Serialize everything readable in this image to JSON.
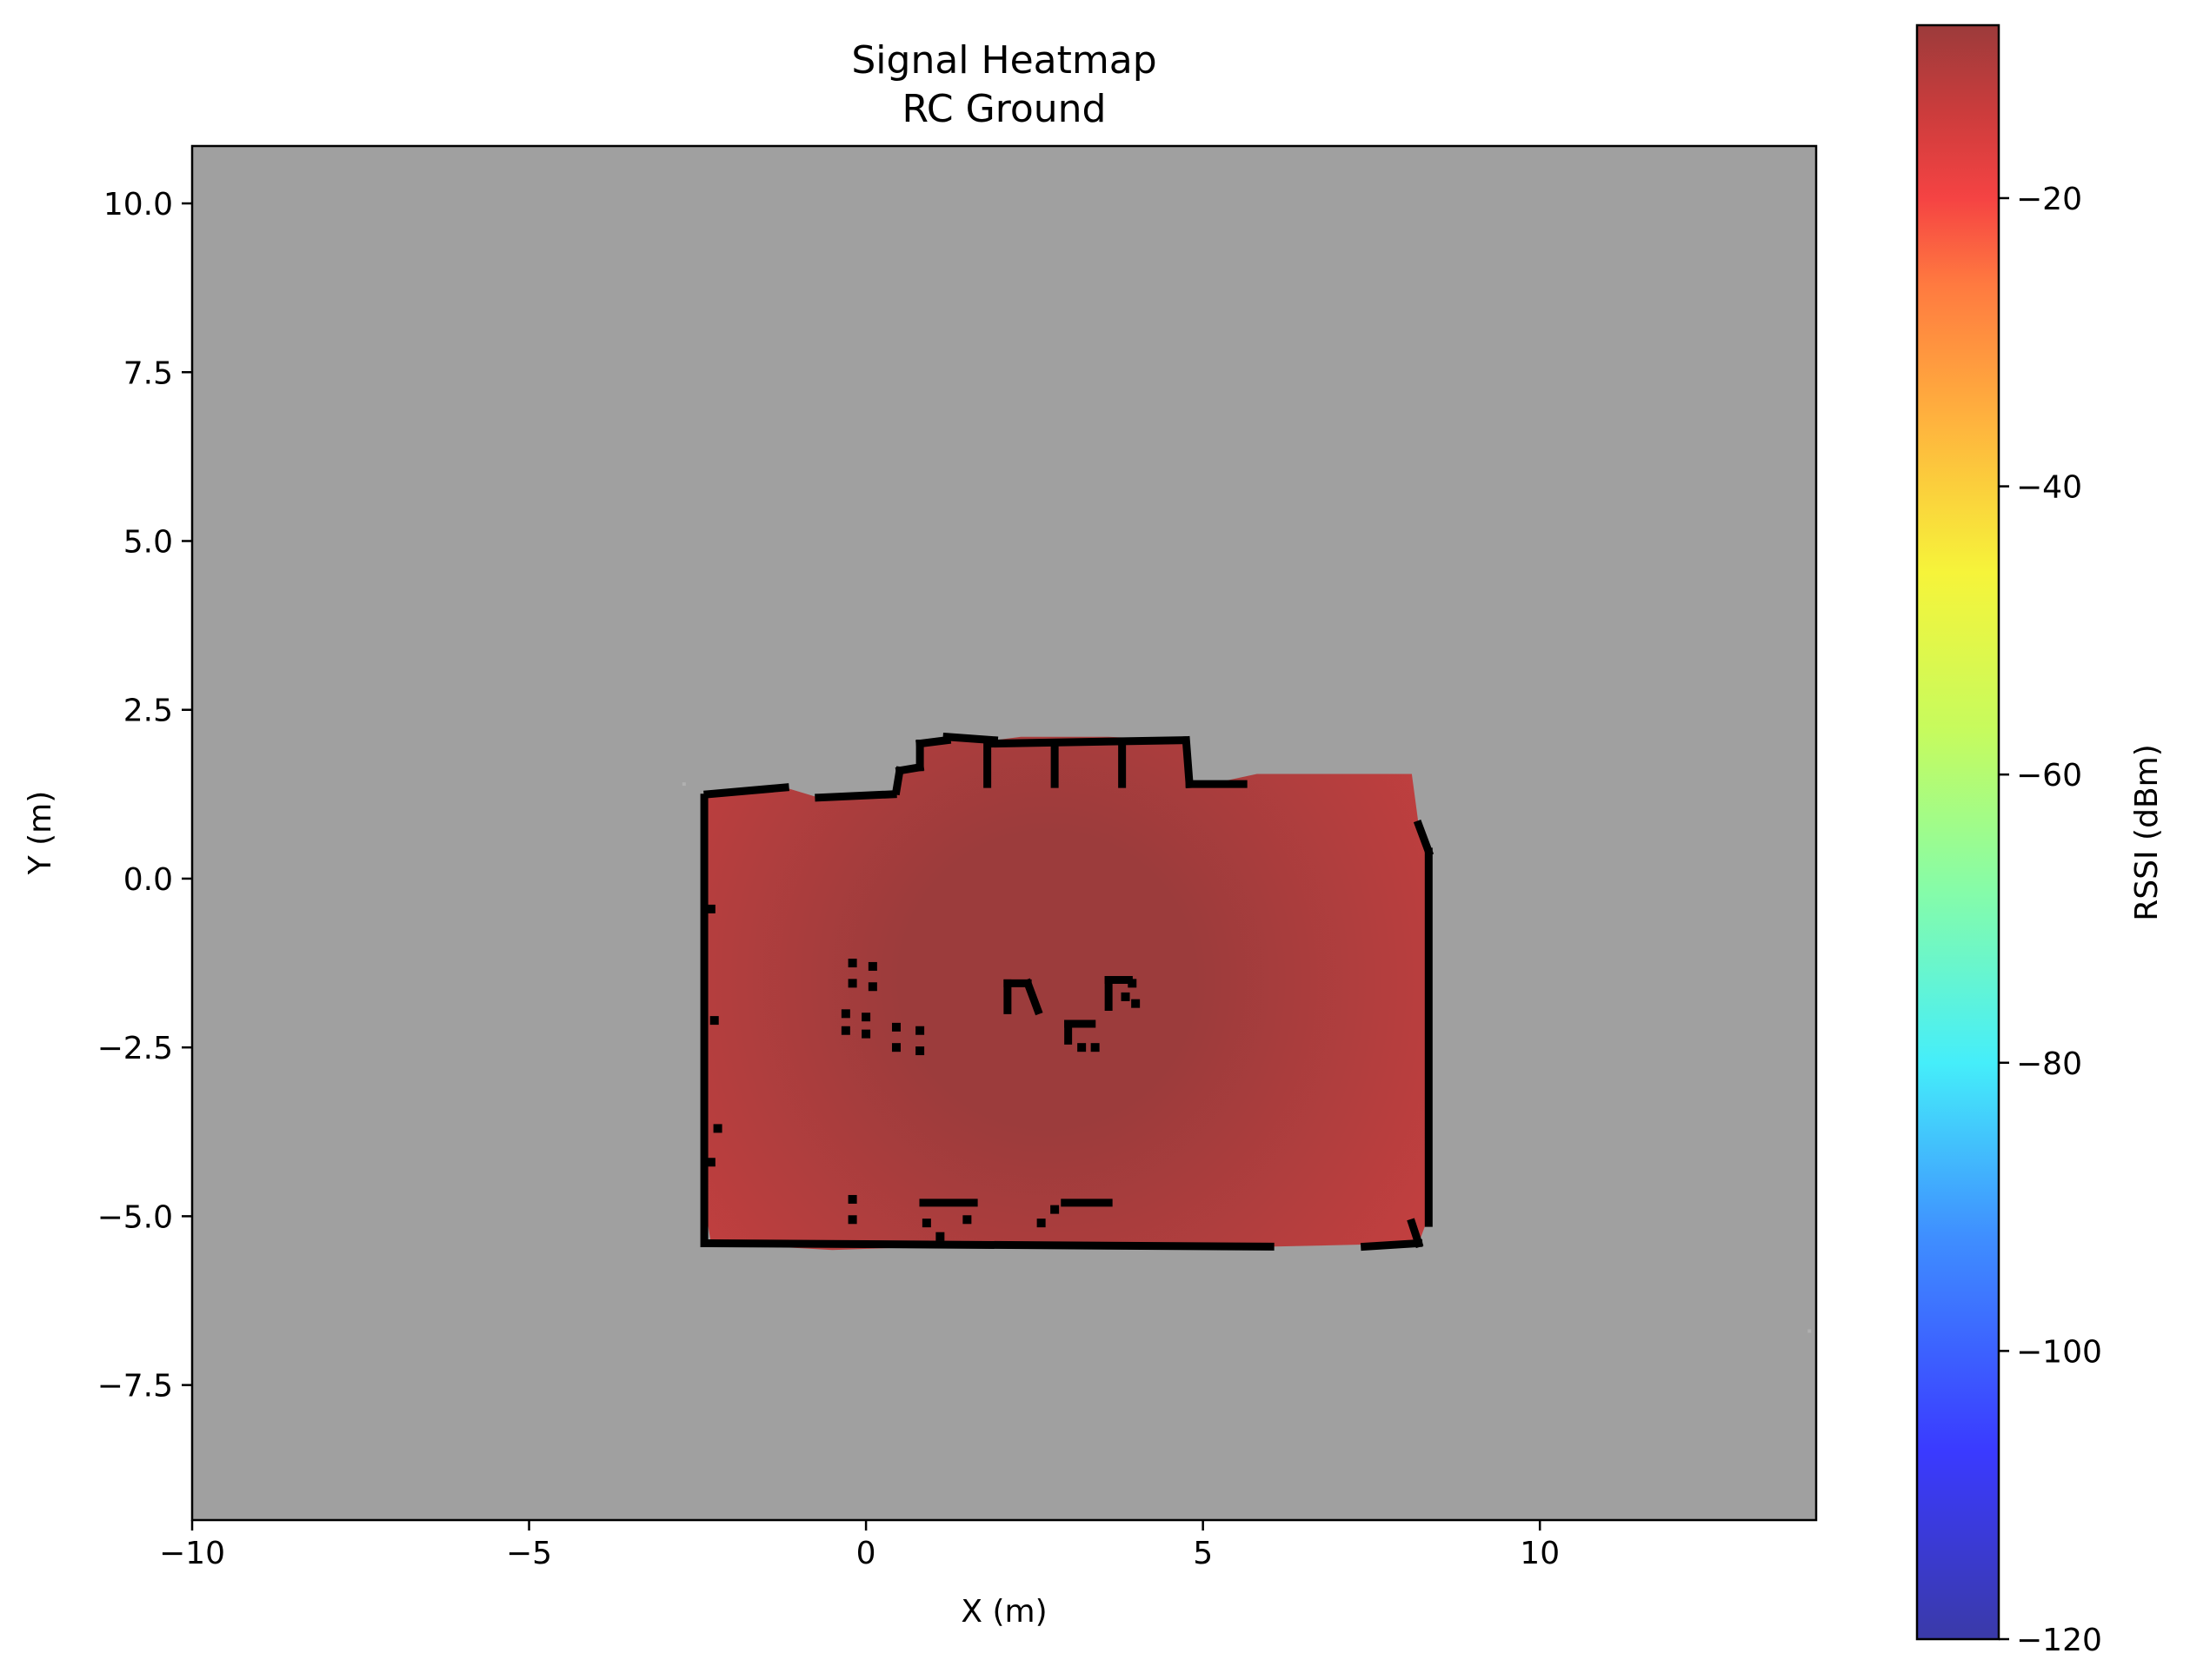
{
  "chart_data": {
    "type": "heatmap",
    "title": "Signal Heatmap",
    "subtitle": "RC Ground",
    "xlabel": "X (m)",
    "ylabel": "Y (m)",
    "xlim": [
      -10,
      14.1
    ],
    "ylim": [
      -9.5,
      10.85
    ],
    "xticks": [
      -10,
      -5,
      0,
      5,
      10
    ],
    "xtick_labels": [
      "−10",
      "−5",
      "0",
      "5",
      "10"
    ],
    "yticks": [
      10.0,
      7.5,
      5.0,
      2.5,
      0.0,
      -2.5,
      -5.0,
      -7.5
    ],
    "ytick_labels": [
      "10.0",
      "7.5",
      "5.0",
      "2.5",
      "0.0",
      "−2.5",
      "−5.0",
      "−7.5"
    ],
    "grid": false,
    "background_color": "#a0a0a0",
    "wall_color": "#000000",
    "colormap": "jet",
    "colorbar": {
      "label": "RSSI (dBm)",
      "range": [
        -120,
        -8
      ],
      "ticks": [
        -20,
        -40,
        -60,
        -80,
        -100,
        -120
      ],
      "tick_labels": [
        "−20",
        "−40",
        "−60",
        "−80",
        "−100",
        "−120"
      ],
      "stops": [
        {
          "value": -120,
          "color": "#3a3aa8"
        },
        {
          "value": -107,
          "color": "#3a3aff"
        },
        {
          "value": -92,
          "color": "#3f8fff"
        },
        {
          "value": -80,
          "color": "#45eefa"
        },
        {
          "value": -68,
          "color": "#86fca8"
        },
        {
          "value": -57,
          "color": "#c6fb5e"
        },
        {
          "value": -46,
          "color": "#f6f43a"
        },
        {
          "value": -35,
          "color": "#ffb03e"
        },
        {
          "value": -26,
          "color": "#ff7a40"
        },
        {
          "value": -20,
          "color": "#f54343"
        },
        {
          "value": -14,
          "color": "#cb3c3c"
        },
        {
          "value": -8,
          "color": "#9c3b3b"
        }
      ]
    },
    "coverage": {
      "rssi_center": -9,
      "rssi_edge": -19,
      "center_point": [
        2.7,
        -1.5
      ],
      "color_center": "#9c3c3c",
      "color_edge": "#e54242",
      "footprint": [
        [
          -2.4,
          1.2
        ],
        [
          -1.2,
          1.35
        ],
        [
          -0.7,
          1.2
        ],
        [
          0.4,
          1.3
        ],
        [
          0.5,
          1.6
        ],
        [
          0.8,
          1.65
        ],
        [
          0.8,
          2.0
        ],
        [
          1.2,
          2.1
        ],
        [
          1.9,
          2.05
        ],
        [
          2.3,
          2.1
        ],
        [
          3.6,
          2.1
        ],
        [
          4.7,
          2.05
        ],
        [
          4.8,
          1.4
        ],
        [
          5.1,
          1.4
        ],
        [
          5.8,
          1.55
        ],
        [
          8.1,
          1.55
        ],
        [
          8.2,
          0.8
        ],
        [
          8.35,
          0.5
        ],
        [
          8.35,
          -5.0
        ],
        [
          8.2,
          -5.4
        ],
        [
          6.0,
          -5.45
        ],
        [
          3.4,
          -5.4
        ],
        [
          1.0,
          -5.45
        ],
        [
          -0.5,
          -5.5
        ],
        [
          -2.3,
          -5.4
        ],
        [
          -2.4,
          -4.8
        ],
        [
          -2.4,
          -3.0
        ]
      ],
      "walls": [
        [
          [
            -2.4,
            1.2
          ],
          [
            -2.4,
            -5.4
          ]
        ],
        [
          [
            -2.35,
            1.25
          ],
          [
            -1.2,
            1.35
          ]
        ],
        [
          [
            -0.7,
            1.2
          ],
          [
            0.4,
            1.25
          ]
        ],
        [
          [
            0.45,
            1.3
          ],
          [
            0.5,
            1.6
          ]
        ],
        [
          [
            0.5,
            1.6
          ],
          [
            0.8,
            1.65
          ]
        ],
        [
          [
            0.8,
            1.65
          ],
          [
            0.8,
            2.0
          ]
        ],
        [
          [
            0.8,
            2.0
          ],
          [
            1.2,
            2.05
          ]
        ],
        [
          [
            1.2,
            2.1
          ],
          [
            1.9,
            2.05
          ]
        ],
        [
          [
            1.9,
            2.0
          ],
          [
            4.7,
            2.05
          ]
        ],
        [
          [
            1.8,
            2.0
          ],
          [
            1.8,
            1.4
          ]
        ],
        [
          [
            2.8,
            2.0
          ],
          [
            2.8,
            1.4
          ]
        ],
        [
          [
            3.8,
            2.0
          ],
          [
            3.8,
            1.4
          ]
        ],
        [
          [
            4.75,
            2.05
          ],
          [
            4.8,
            1.4
          ]
        ],
        [
          [
            4.8,
            1.4
          ],
          [
            5.6,
            1.4
          ]
        ],
        [
          [
            8.2,
            0.8
          ],
          [
            8.35,
            0.4
          ]
        ],
        [
          [
            8.35,
            0.4
          ],
          [
            8.35,
            -5.1
          ]
        ],
        [
          [
            8.1,
            -5.1
          ],
          [
            8.2,
            -5.4
          ]
        ],
        [
          [
            -2.3,
            -5.4
          ],
          [
            6.0,
            -5.45
          ]
        ],
        [
          [
            7.4,
            -5.45
          ],
          [
            8.2,
            -5.4
          ]
        ],
        [
          [
            2.1,
            -1.55
          ],
          [
            2.4,
            -1.55
          ]
        ],
        [
          [
            2.1,
            -1.55
          ],
          [
            2.1,
            -1.95
          ]
        ],
        [
          [
            2.4,
            -1.55
          ],
          [
            2.55,
            -1.95
          ]
        ],
        [
          [
            3.0,
            -2.15
          ],
          [
            3.35,
            -2.15
          ]
        ],
        [
          [
            3.0,
            -2.15
          ],
          [
            3.0,
            -2.4
          ]
        ],
        [
          [
            3.6,
            -1.5
          ],
          [
            3.9,
            -1.5
          ]
        ],
        [
          [
            3.6,
            -1.5
          ],
          [
            3.6,
            -1.9
          ]
        ],
        [
          [
            2.95,
            -4.8
          ],
          [
            3.6,
            -4.8
          ]
        ],
        [
          [
            0.85,
            -4.8
          ],
          [
            1.6,
            -4.8
          ]
        ]
      ],
      "obstacles": [
        [
          -0.2,
          -1.25
        ],
        [
          0.1,
          -1.3
        ],
        [
          -0.2,
          -1.55
        ],
        [
          0.1,
          -1.6
        ],
        [
          -0.3,
          -2.0
        ],
        [
          0.0,
          -2.05
        ],
        [
          -0.3,
          -2.25
        ],
        [
          0.0,
          -2.3
        ],
        [
          0.45,
          -2.2
        ],
        [
          0.8,
          -2.25
        ],
        [
          0.45,
          -2.5
        ],
        [
          0.8,
          -2.55
        ],
        [
          3.85,
          -1.75
        ],
        [
          4.0,
          -1.85
        ],
        [
          3.95,
          -1.55
        ],
        [
          3.2,
          -2.5
        ],
        [
          3.4,
          -2.5
        ],
        [
          -0.2,
          -4.75
        ],
        [
          -0.2,
          -5.05
        ],
        [
          0.9,
          -5.1
        ],
        [
          1.5,
          -5.05
        ],
        [
          2.8,
          -4.9
        ],
        [
          2.6,
          -5.1
        ],
        [
          1.1,
          -5.3
        ],
        [
          -2.3,
          -0.45
        ],
        [
          -2.25,
          -2.1
        ],
        [
          -2.2,
          -3.7
        ],
        [
          -2.3,
          -4.2
        ]
      ],
      "faint_marks": [
        [
          -2.7,
          1.4
        ],
        [
          14.0,
          -6.7
        ]
      ]
    }
  }
}
